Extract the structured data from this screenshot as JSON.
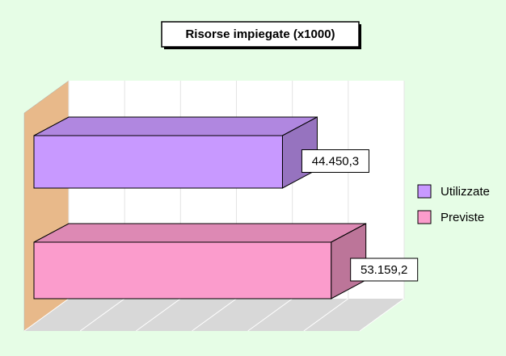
{
  "chart_data": {
    "type": "bar",
    "orientation": "horizontal",
    "title": "Risorse impiegate (x1000)",
    "series": [
      {
        "name": "Utilizzate",
        "color": "#c899ff",
        "values": [
          44450.3
        ],
        "value_labels": [
          "44.450,3"
        ]
      },
      {
        "name": "Previste",
        "color": "#fb9ccc",
        "values": [
          53159.2
        ],
        "value_labels": [
          "53.159,2"
        ]
      }
    ],
    "xlim": [
      0,
      60000
    ],
    "xticks": [
      0,
      10000,
      20000,
      30000,
      40000,
      50000,
      60000
    ],
    "grid": true,
    "legend": "right"
  }
}
